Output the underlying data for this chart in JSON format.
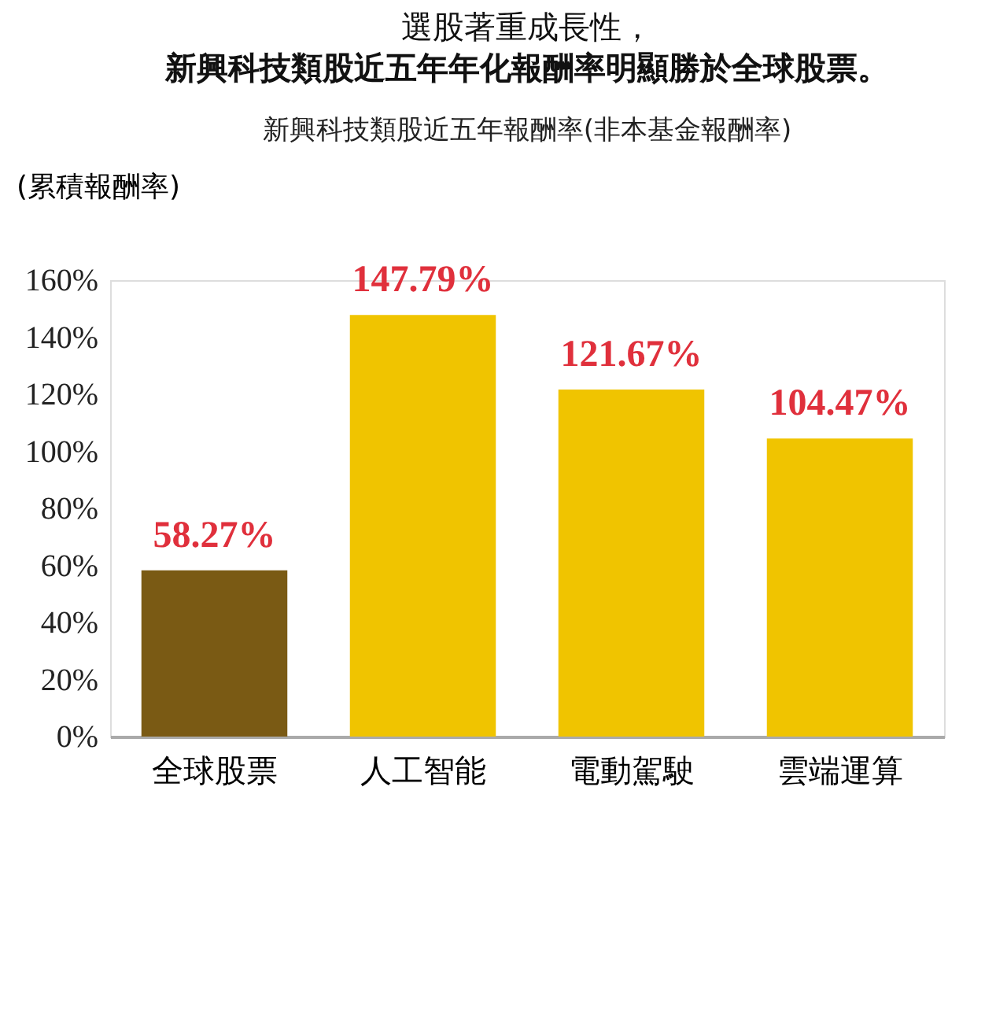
{
  "chart_data": {
    "type": "bar",
    "title": "選股著重成長性，",
    "subtitle": "新興科技類股近五年年化報酬率明顯勝於全球股票。",
    "annotations": [
      "新興科技類股近五年報酬率(非本基金報酬率)"
    ],
    "ylabel": "(累積報酬率)",
    "categories": [
      "全球股票",
      "人工智能",
      "電動駕駛",
      "雲端運算"
    ],
    "values": [
      58.27,
      147.79,
      121.67,
      104.47
    ],
    "colors": [
      "#7a5a14",
      "#f0c400",
      "#f0c400",
      "#f0c400"
    ],
    "value_labels": [
      "58.27%",
      "147.79%",
      "121.67%",
      "104.47%"
    ],
    "ylim": [
      0,
      160
    ],
    "yticks": [
      {
        "value": 0,
        "label": "0%"
      },
      {
        "value": 20,
        "label": "20%"
      },
      {
        "value": 40,
        "label": "40%"
      },
      {
        "value": 60,
        "label": "60%"
      },
      {
        "value": 80,
        "label": "80%"
      },
      {
        "value": 100,
        "label": "100%"
      },
      {
        "value": 120,
        "label": "120%"
      },
      {
        "value": 140,
        "label": "140%"
      },
      {
        "value": 160,
        "label": "160%"
      }
    ],
    "grid": false,
    "legend": false
  }
}
